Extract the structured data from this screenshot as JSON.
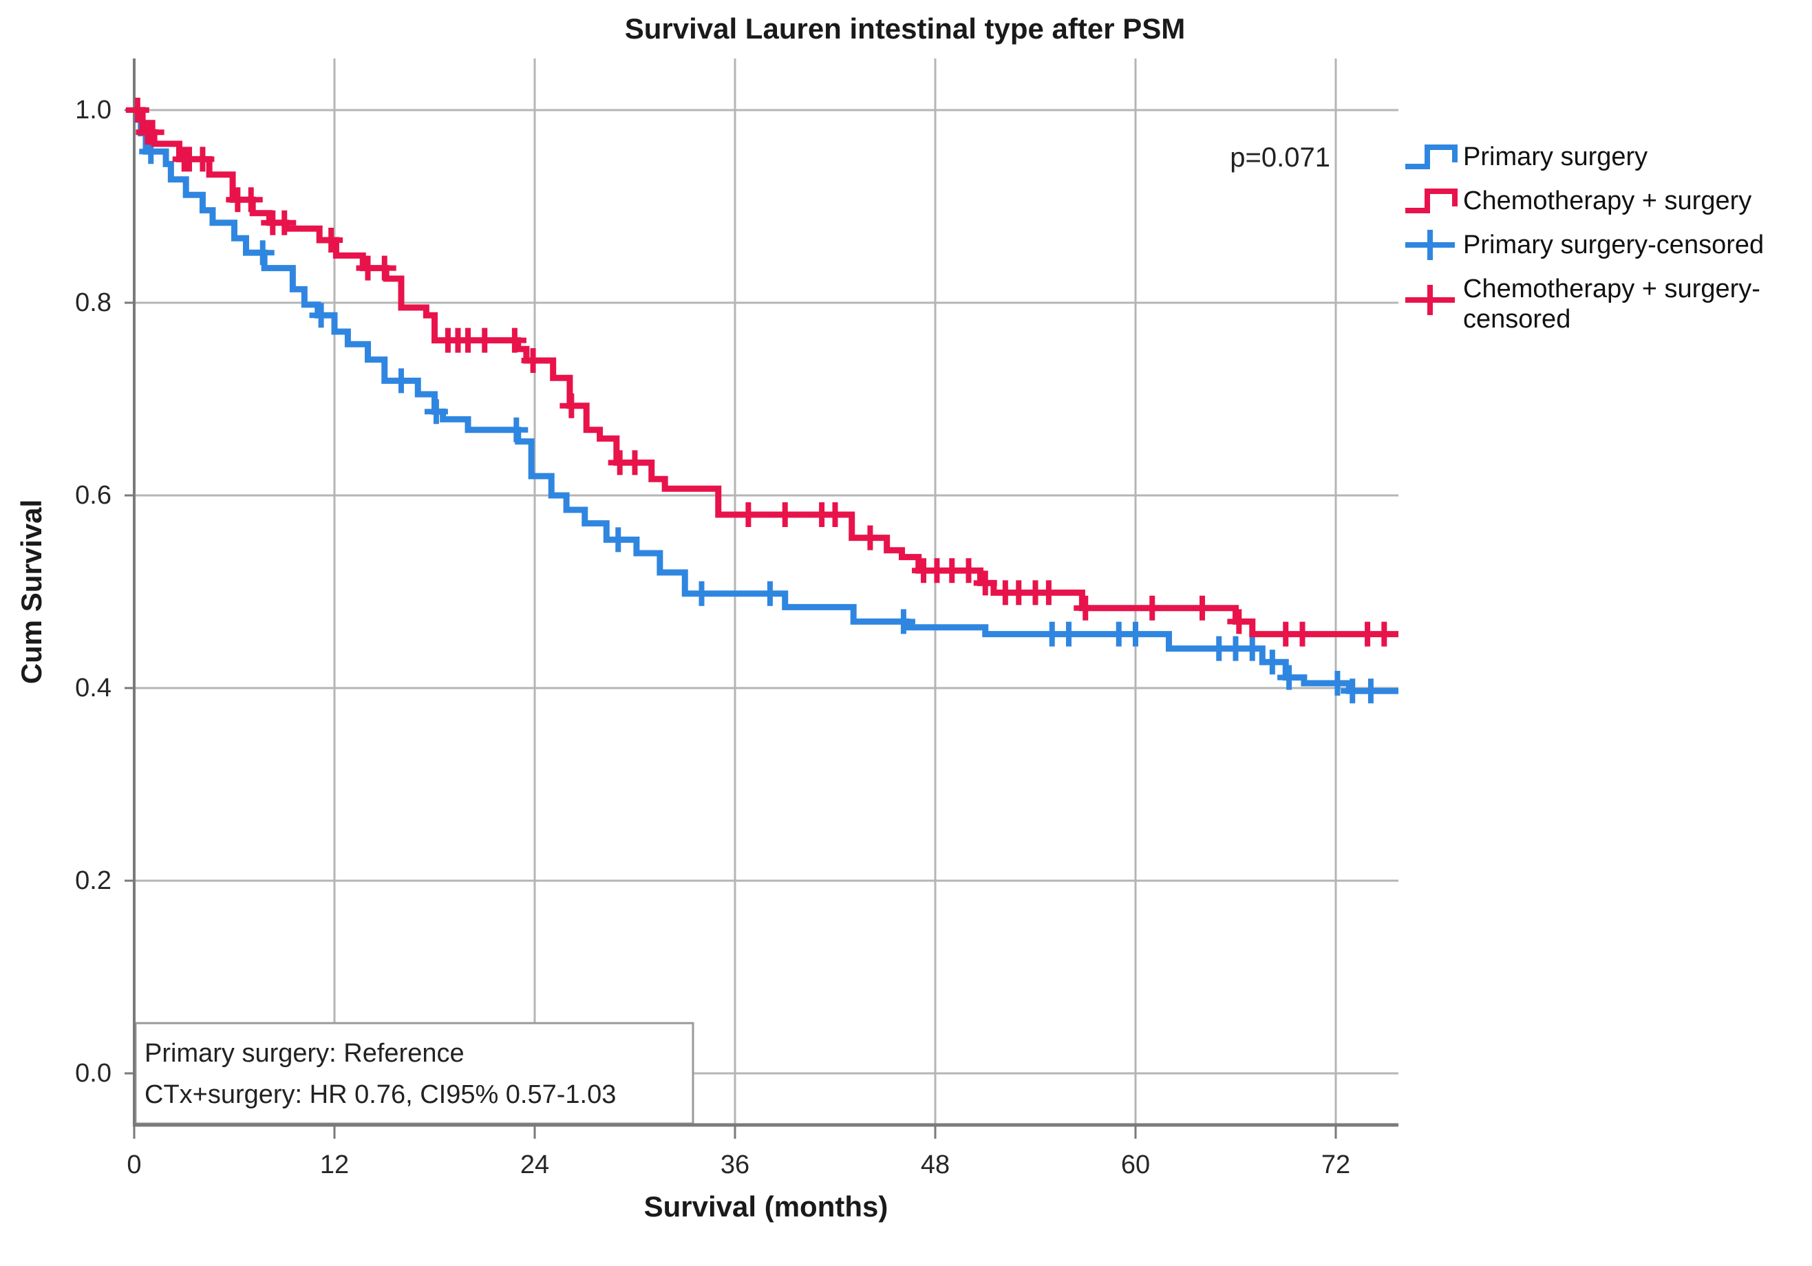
{
  "title": "Survival Lauren intestinal type after PSM",
  "p_value_label": "p=0.071",
  "annotation": {
    "line1": "Primary surgery: Reference",
    "line2": "CTx+surgery: HR 0.76, CI95% 0.57-1.03"
  },
  "colors": {
    "primary_surgery": "#2f86e0",
    "chemotherapy_surgery": "#e8134b",
    "gridline": "#b5b5b5",
    "axis": "#7a7a7a",
    "annotation_border": "#9a9a9a"
  },
  "chart_data": {
    "type": "line",
    "subtype": "kaplan-meier-step",
    "title": "Survival Lauren intestinal type after PSM",
    "xlabel": "Survival (months)",
    "ylabel": "Cum Survival",
    "xlim": [
      0,
      75.8
    ],
    "ylim": [
      0.0,
      1.05
    ],
    "grid": true,
    "legend_position": "right",
    "xticks": [
      0,
      12,
      24,
      36,
      48,
      60,
      72
    ],
    "xtick_labels": [
      "0",
      "12",
      "24",
      "36",
      "48",
      "60",
      "72"
    ],
    "yticks": [
      0.0,
      0.2,
      0.4,
      0.6,
      0.8,
      1.0
    ],
    "ytick_labels": [
      "0.0",
      "0.2",
      "0.4",
      "0.6",
      "0.8",
      "1.0"
    ],
    "p_value": "p=0.071",
    "series": [
      {
        "name": "Primary surgery",
        "color": "#2f86e0",
        "end_time": 75.8,
        "steps": [
          [
            0,
            0.99
          ],
          [
            0.4,
            0.976
          ],
          [
            0.7,
            0.957
          ],
          [
            1.9,
            0.944
          ],
          [
            2.2,
            0.928
          ],
          [
            3.1,
            0.912
          ],
          [
            4.1,
            0.896
          ],
          [
            4.7,
            0.883
          ],
          [
            6.0,
            0.867
          ],
          [
            6.7,
            0.852
          ],
          [
            7.8,
            0.836
          ],
          [
            9.5,
            0.814
          ],
          [
            10.2,
            0.798
          ],
          [
            11.0,
            0.787
          ],
          [
            12.0,
            0.77
          ],
          [
            12.8,
            0.757
          ],
          [
            14.0,
            0.741
          ],
          [
            15.0,
            0.719
          ],
          [
            17.0,
            0.705
          ],
          [
            18.0,
            0.687
          ],
          [
            18.5,
            0.679
          ],
          [
            20.0,
            0.668
          ],
          [
            23.0,
            0.656
          ],
          [
            23.8,
            0.62
          ],
          [
            25.0,
            0.6
          ],
          [
            25.9,
            0.585
          ],
          [
            27.0,
            0.571
          ],
          [
            28.3,
            0.554
          ],
          [
            30.1,
            0.54
          ],
          [
            31.5,
            0.52
          ],
          [
            33.0,
            0.498
          ],
          [
            39.0,
            0.484
          ],
          [
            43.1,
            0.469
          ],
          [
            46.3,
            0.463
          ],
          [
            51.0,
            0.456
          ],
          [
            62.0,
            0.441
          ],
          [
            67.6,
            0.427
          ],
          [
            69.0,
            0.411
          ],
          [
            70.1,
            0.405
          ],
          [
            72.8,
            0.397
          ]
        ],
        "censored_times": [
          1.0,
          7.7,
          11.2,
          16.0,
          18.1,
          22.9,
          29.0,
          34.0,
          38.1,
          46.1,
          55.0,
          56.0,
          59.0,
          60.0,
          65.0,
          66.0,
          67.0,
          68.2,
          69.2,
          72.1,
          73.0,
          74.1
        ]
      },
      {
        "name": "Chemotherapy + surgery",
        "color": "#e8134b",
        "end_time": 75.8,
        "steps": [
          [
            0,
            1.0
          ],
          [
            0.5,
            0.977
          ],
          [
            1.2,
            0.965
          ],
          [
            2.7,
            0.949
          ],
          [
            4.5,
            0.933
          ],
          [
            5.9,
            0.907
          ],
          [
            7.1,
            0.893
          ],
          [
            8.1,
            0.883
          ],
          [
            9.1,
            0.877
          ],
          [
            11.1,
            0.865
          ],
          [
            12.1,
            0.849
          ],
          [
            13.7,
            0.836
          ],
          [
            15.1,
            0.825
          ],
          [
            16.0,
            0.795
          ],
          [
            17.5,
            0.787
          ],
          [
            18.0,
            0.761
          ],
          [
            23.0,
            0.752
          ],
          [
            23.5,
            0.74
          ],
          [
            25.1,
            0.722
          ],
          [
            26.1,
            0.693
          ],
          [
            27.1,
            0.668
          ],
          [
            27.9,
            0.659
          ],
          [
            28.9,
            0.634
          ],
          [
            31.0,
            0.617
          ],
          [
            31.8,
            0.607
          ],
          [
            35.0,
            0.58
          ],
          [
            43.0,
            0.556
          ],
          [
            45.1,
            0.543
          ],
          [
            46.0,
            0.536
          ],
          [
            47.0,
            0.522
          ],
          [
            50.7,
            0.509
          ],
          [
            51.5,
            0.499
          ],
          [
            56.8,
            0.483
          ],
          [
            66.0,
            0.469
          ],
          [
            67.0,
            0.456
          ]
        ],
        "censored_times": [
          0.2,
          0.8,
          1.1,
          3.0,
          3.3,
          4.1,
          6.2,
          7.0,
          8.3,
          9.0,
          11.8,
          14.0,
          15.0,
          18.8,
          19.4,
          20.0,
          21.0,
          22.8,
          23.9,
          26.2,
          29.1,
          30.0,
          36.8,
          39.0,
          41.2,
          42.0,
          44.1,
          47.3,
          48.1,
          49.0,
          50.0,
          51.0,
          52.2,
          53.0,
          54.0,
          54.8,
          57.0,
          61.0,
          64.0,
          66.2,
          69.0,
          70.0,
          73.9,
          74.9
        ]
      }
    ],
    "legend": [
      {
        "label": "Primary surgery",
        "type": "line",
        "color": "#2f86e0"
      },
      {
        "label": "Chemotherapy + surgery",
        "type": "line",
        "color": "#e8134b"
      },
      {
        "label": "Primary surgery-censored",
        "type": "censor",
        "color": "#2f86e0"
      },
      {
        "label_line1": "Chemotherapy + surgery-",
        "label_line2": "censored",
        "type": "censor",
        "color": "#e8134b"
      }
    ]
  }
}
